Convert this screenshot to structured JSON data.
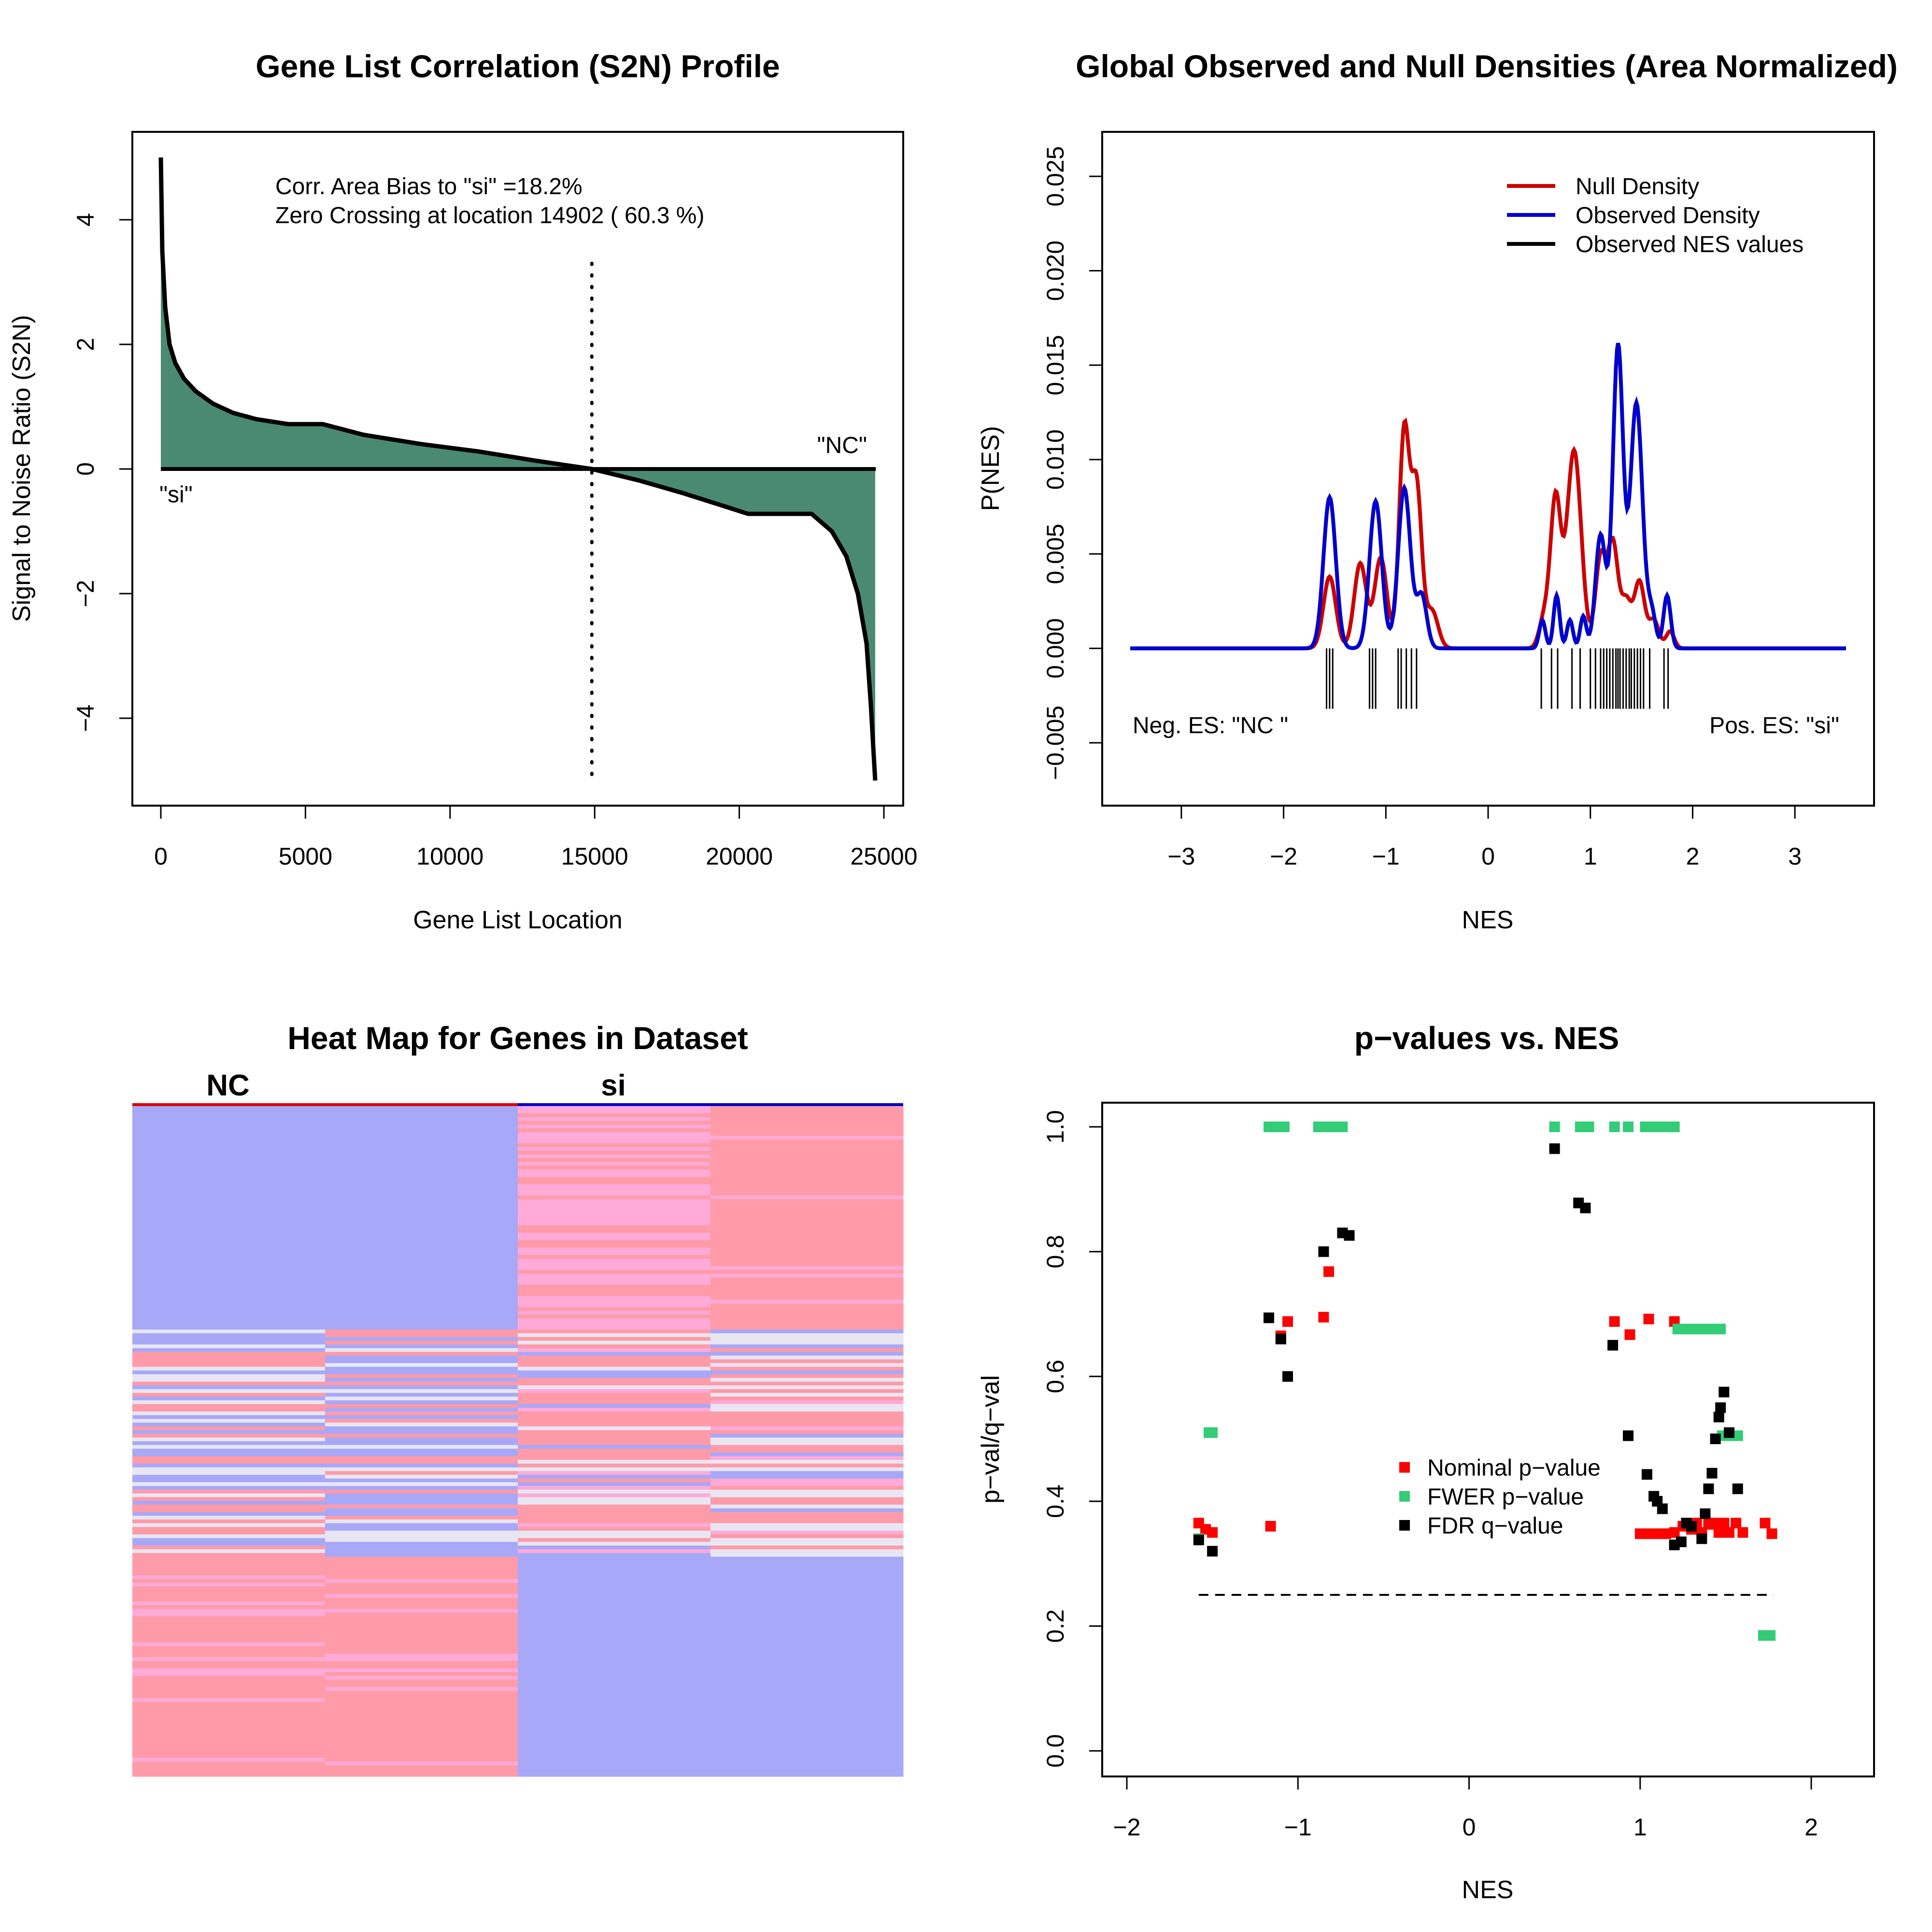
{
  "chart_data": [
    {
      "id": "s2n",
      "type": "area",
      "title": "Gene List Correlation (S2N) Profile",
      "xlabel": "Gene List Location",
      "ylabel": "Signal to Noise Ratio (S2N)",
      "xlim": [
        0,
        25000
      ],
      "ylim": [
        -5,
        5
      ],
      "xticks": [
        "0",
        "5000",
        "10000",
        "15000",
        "20000",
        "25000"
      ],
      "yticks": [
        "−4",
        "−2",
        "0",
        "2",
        "4"
      ],
      "annotations": {
        "bias": "Corr. Area Bias to \"si\" =18.2%",
        "zero": "Zero Crossing at location  14902  ( 60.3  %)",
        "left_label": "\"si\"",
        "right_label": "\"NC\""
      },
      "zero_crossing": 14902,
      "n_genes": 24720,
      "fill_color": "#4a8a72",
      "x": [
        0,
        50,
        150,
        300,
        500,
        800,
        1200,
        1800,
        2500,
        3300,
        4400,
        5600,
        7000,
        9000,
        11000,
        13000,
        14902,
        16500,
        18000,
        19500,
        20300,
        22500,
        23200,
        23700,
        24100,
        24400,
        24550,
        24650,
        24700
      ],
      "y": [
        5.0,
        3.5,
        2.6,
        2.0,
        1.7,
        1.45,
        1.25,
        1.05,
        0.9,
        0.8,
        0.72,
        0.72,
        0.55,
        0.4,
        0.28,
        0.13,
        0.0,
        -0.18,
        -0.38,
        -0.6,
        -0.72,
        -0.72,
        -1.0,
        -1.4,
        -2.0,
        -2.8,
        -3.8,
        -4.6,
        -5.0
      ]
    },
    {
      "id": "density",
      "type": "line",
      "title": "Global Observed and Null Densities (Area Normalized)",
      "xlabel": "NES",
      "ylabel": "P(NES)",
      "xlim": [
        -3.5,
        3.5
      ],
      "ylim": [
        -0.005,
        0.025
      ],
      "xticks": [
        "−3",
        "−2",
        "−1",
        "0",
        "1",
        "2",
        "3"
      ],
      "yticks": [
        "−0.005",
        "0.000",
        "0.005",
        "0.010",
        "0.015",
        "0.020",
        "0.025"
      ],
      "legend": [
        "Null Density",
        "Observed Density",
        "Observed NES values"
      ],
      "legend_position": "top-right",
      "neg_label": "Neg. ES: \"NC \"",
      "pos_label": "Pos. ES: \"si\"",
      "colors": {
        "null": "#cc0000",
        "observed": "#0000cc",
        "nes": "#000000"
      },
      "null_peaks": [
        [
          -1.55,
          0.0038,
          0.06
        ],
        [
          -1.25,
          0.0045,
          0.06
        ],
        [
          -1.05,
          0.0048,
          0.06
        ],
        [
          -0.82,
          0.0115,
          0.05
        ],
        [
          -0.7,
          0.0085,
          0.05
        ],
        [
          -0.55,
          0.002,
          0.06
        ],
        [
          0.55,
          0.0016,
          0.05
        ],
        [
          0.66,
          0.0078,
          0.05
        ],
        [
          0.84,
          0.0105,
          0.07
        ],
        [
          1.1,
          0.0048,
          0.05
        ],
        [
          1.22,
          0.0055,
          0.05
        ],
        [
          1.35,
          0.0025,
          0.05
        ],
        [
          1.48,
          0.0035,
          0.05
        ],
        [
          1.62,
          0.0015,
          0.05
        ],
        [
          1.78,
          0.0009,
          0.04
        ]
      ],
      "observed_peaks": [
        [
          -1.55,
          0.008,
          0.06
        ],
        [
          -1.1,
          0.0078,
          0.06
        ],
        [
          -0.82,
          0.0085,
          0.06
        ],
        [
          -0.65,
          0.0028,
          0.05
        ],
        [
          0.53,
          0.0015,
          0.03
        ],
        [
          0.67,
          0.0028,
          0.03
        ],
        [
          0.8,
          0.0015,
          0.03
        ],
        [
          0.93,
          0.0017,
          0.03
        ],
        [
          1.1,
          0.006,
          0.05
        ],
        [
          1.27,
          0.016,
          0.05
        ],
        [
          1.45,
          0.013,
          0.06
        ],
        [
          1.6,
          0.0018,
          0.04
        ],
        [
          1.75,
          0.0028,
          0.035
        ]
      ],
      "nes_values": [
        -1.58,
        -1.55,
        -1.52,
        -1.16,
        -1.13,
        -1.1,
        -0.88,
        -0.85,
        -0.8,
        -0.75,
        -0.7,
        0.52,
        0.62,
        0.68,
        0.82,
        0.9,
        1.0,
        1.05,
        1.1,
        1.13,
        1.16,
        1.19,
        1.22,
        1.25,
        1.27,
        1.29,
        1.32,
        1.35,
        1.38,
        1.4,
        1.43,
        1.46,
        1.49,
        1.52,
        1.58,
        1.72,
        1.76
      ]
    },
    {
      "id": "heatmap",
      "type": "heatmap",
      "title": "Heat Map for Genes in Dataset",
      "groups": [
        "NC",
        "si"
      ],
      "group_colors": [
        "#dd0000",
        "#0000cc"
      ],
      "columns": 4,
      "colors": {
        "high": "#ff9aa8",
        "low": "#a8a8f8",
        "mid": "#e8e6f2",
        "pink": "#ffaad8"
      }
    },
    {
      "id": "pvals",
      "type": "scatter",
      "title": "p−values vs. NES",
      "xlabel": "NES",
      "ylabel": "p−val/q−val",
      "xlim": [
        -2,
        2
      ],
      "ylim": [
        0,
        1
      ],
      "xticks": [
        "−2",
        "−1",
        "0",
        "1",
        "2"
      ],
      "yticks": [
        "0.0",
        "0.2",
        "0.4",
        "0.6",
        "0.8",
        "1.0"
      ],
      "threshold": 0.25,
      "legend": [
        "Nominal p−value",
        "FWER p−value",
        "FDR q−value"
      ],
      "legend_position": "right-center",
      "series": [
        {
          "name": "Nominal p−value",
          "color": "#ff0000",
          "x": [
            -1.58,
            -1.54,
            -1.5,
            -1.16,
            -1.1,
            -1.06,
            -0.85,
            -0.82,
            0.85,
            0.94,
            1.05,
            1.2,
            1.0,
            1.05,
            1.1,
            1.15,
            1.2,
            1.25,
            1.3,
            1.33,
            1.36,
            1.4,
            1.43,
            1.46,
            1.49,
            1.52,
            1.56,
            1.6,
            1.73,
            1.77
          ],
          "y": [
            0.365,
            0.355,
            0.35,
            0.36,
            0.665,
            0.688,
            0.695,
            0.768,
            0.688,
            0.667,
            0.692,
            0.688,
            0.348,
            0.348,
            0.348,
            0.348,
            0.35,
            0.36,
            0.355,
            0.365,
            0.35,
            0.363,
            0.365,
            0.35,
            0.365,
            0.35,
            0.365,
            0.35,
            0.365,
            0.348
          ]
        },
        {
          "name": "FWER p−value",
          "color": "#33cc77",
          "x": [
            -1.58,
            -1.52,
            -1.5,
            -1.17,
            -1.14,
            -1.11,
            -1.08,
            -0.88,
            -0.84,
            -0.78,
            -0.74,
            0.5,
            0.65,
            0.7,
            0.85,
            0.93,
            1.03,
            1.07,
            1.12,
            1.17,
            1.2,
            1.22,
            1.27,
            1.32,
            1.37,
            1.42,
            1.47,
            1.48,
            1.52,
            1.57,
            1.72,
            1.76
          ],
          "y": [
            0.34,
            0.51,
            0.51,
            1.0,
            1.0,
            1.0,
            1.0,
            1.0,
            1.0,
            1.0,
            1.0,
            1.0,
            1.0,
            1.0,
            1.0,
            1.0,
            1.0,
            1.0,
            1.0,
            1.0,
            1.0,
            0.676,
            0.676,
            0.676,
            0.676,
            0.676,
            0.676,
            0.505,
            0.505,
            0.505,
            0.185,
            0.185
          ]
        },
        {
          "name": "FDR q−value",
          "color": "#000000",
          "x": [
            -1.58,
            -1.5,
            -1.17,
            -1.1,
            -1.06,
            -0.85,
            -0.74,
            -0.7,
            0.5,
            0.64,
            0.68,
            0.84,
            0.93,
            1.04,
            1.08,
            1.1,
            1.13,
            1.2,
            1.24,
            1.27,
            1.3,
            1.36,
            1.38,
            1.4,
            1.42,
            1.44,
            1.46,
            1.47,
            1.49,
            1.52,
            1.57
          ],
          "y": [
            0.338,
            0.32,
            0.694,
            0.66,
            0.6,
            0.8,
            0.83,
            0.826,
            0.965,
            0.878,
            0.87,
            0.65,
            0.505,
            0.443,
            0.408,
            0.4,
            0.388,
            0.33,
            0.335,
            0.365,
            0.36,
            0.34,
            0.38,
            0.42,
            0.445,
            0.5,
            0.535,
            0.55,
            0.575,
            0.51,
            0.42
          ]
        }
      ]
    }
  ]
}
